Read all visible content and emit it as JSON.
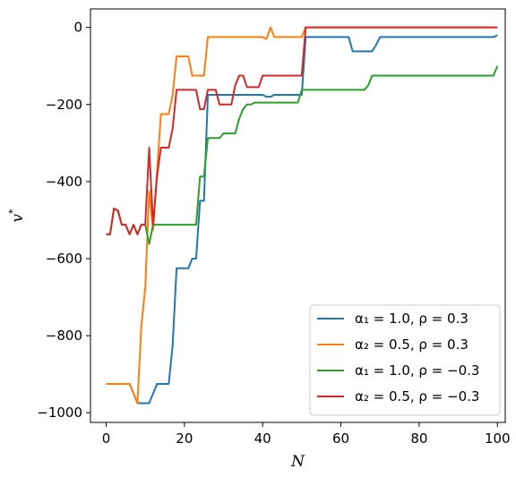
{
  "chart_data": {
    "type": "line",
    "title": "",
    "xlabel": "N",
    "ylabel": "v",
    "ylabel_superscript": "*",
    "xlim": [
      -4,
      102
    ],
    "ylim": [
      -1025,
      48
    ],
    "x_ticks": [
      0,
      20,
      40,
      60,
      80,
      100
    ],
    "y_ticks": [
      0,
      -200,
      -400,
      -600,
      -800,
      -1000
    ],
    "x_tick_labels": [
      "0",
      "20",
      "40",
      "60",
      "80",
      "100"
    ],
    "y_tick_labels": [
      "0",
      "−200",
      "−400",
      "−600",
      "−800",
      "−1000"
    ],
    "grid": false,
    "legend_position": "lower-right",
    "series": [
      {
        "name": "α₁ = 1.0, ρ = 0.3",
        "color": "#1f77b4",
        "x": [
          0,
          2,
          4,
          6,
          8,
          10,
          11,
          12,
          13,
          14,
          15,
          16,
          17,
          18,
          19,
          20,
          21,
          22,
          23,
          24,
          25,
          26,
          27,
          28,
          29,
          30,
          31,
          32,
          33,
          34,
          35,
          36,
          37,
          38,
          39,
          40,
          41,
          42,
          43,
          44,
          45,
          46,
          47,
          48,
          49,
          50,
          51,
          52,
          53,
          54,
          55,
          56,
          57,
          58,
          59,
          60,
          61,
          62,
          63,
          64,
          65,
          66,
          67,
          68,
          69,
          70,
          75,
          80,
          85,
          90,
          95,
          99,
          100
        ],
        "y": [
          -925,
          -925,
          -925,
          -925,
          -975,
          -975,
          -975,
          -950,
          -925,
          -925,
          -925,
          -925,
          -825,
          -625,
          -625,
          -625,
          -625,
          -600,
          -600,
          -450,
          -450,
          -175,
          -175,
          -175,
          -175,
          -175,
          -175,
          -175,
          -175,
          -175,
          -175,
          -175,
          -175,
          -175,
          -175,
          -175,
          -180,
          -180,
          -175,
          -175,
          -175,
          -175,
          -175,
          -175,
          -175,
          -175,
          -25,
          -25,
          -25,
          -25,
          -25,
          -25,
          -25,
          -25,
          -25,
          -25,
          -25,
          -25,
          -62,
          -62,
          -62,
          -62,
          -62,
          -62,
          -45,
          -25,
          -25,
          -25,
          -25,
          -25,
          -25,
          -25,
          -20
        ]
      },
      {
        "name": "α₂ = 0.5, ρ = 0.3",
        "color": "#ff7f0e",
        "x": [
          0,
          2,
          4,
          6,
          8,
          9,
          10,
          11,
          12,
          13,
          14,
          15,
          16,
          17,
          18,
          19,
          20,
          21,
          22,
          23,
          24,
          25,
          26,
          27,
          28,
          29,
          30,
          31,
          32,
          33,
          34,
          35,
          36,
          37,
          38,
          39,
          40,
          41,
          42,
          43,
          44,
          45,
          46,
          47,
          48,
          49,
          50,
          51,
          52,
          55,
          60,
          65,
          70,
          75,
          80,
          85,
          90,
          95,
          100
        ],
        "y": [
          -925,
          -925,
          -925,
          -925,
          -975,
          -775,
          -675,
          -425,
          -525,
          -375,
          -225,
          -225,
          -225,
          -175,
          -75,
          -75,
          -75,
          -75,
          -125,
          -125,
          -125,
          -125,
          -25,
          -25,
          -25,
          -25,
          -25,
          -25,
          -25,
          -25,
          -25,
          -25,
          -25,
          -25,
          -25,
          -25,
          -25,
          -30,
          0,
          -25,
          -25,
          -25,
          -25,
          -25,
          -25,
          -25,
          -25,
          0,
          0,
          0,
          0,
          0,
          0,
          0,
          0,
          0,
          0,
          0,
          0
        ]
      },
      {
        "name": "α₁ = 1.0, ρ = −0.3",
        "color": "#2ca02c",
        "x": [
          0,
          1,
          2,
          3,
          4,
          5,
          6,
          7,
          8,
          9,
          10,
          11,
          12,
          13,
          14,
          15,
          16,
          17,
          18,
          19,
          20,
          21,
          22,
          23,
          24,
          25,
          26,
          27,
          28,
          29,
          30,
          31,
          32,
          33,
          34,
          35,
          36,
          37,
          38,
          39,
          40,
          41,
          42,
          43,
          44,
          45,
          46,
          47,
          48,
          49,
          50,
          51,
          52,
          55,
          60,
          65,
          66,
          67,
          68,
          69,
          70,
          75,
          80,
          85,
          90,
          95,
          99,
          100
        ],
        "y": [
          -537,
          -537,
          -470,
          -475,
          -512,
          -512,
          -537,
          -512,
          -537,
          -512,
          -512,
          -562,
          -512,
          -512,
          -512,
          -512,
          -512,
          -512,
          -512,
          -512,
          -512,
          -512,
          -512,
          -512,
          -387,
          -387,
          -287,
          -287,
          -287,
          -287,
          -275,
          -275,
          -275,
          -275,
          -237,
          -212,
          -200,
          -200,
          -195,
          -195,
          -195,
          -195,
          -195,
          -195,
          -195,
          -195,
          -195,
          -195,
          -195,
          -195,
          -162,
          -162,
          -162,
          -162,
          -162,
          -162,
          -162,
          -150,
          -125,
          -125,
          -125,
          -125,
          -125,
          -125,
          -125,
          -125,
          -125,
          -100
        ]
      },
      {
        "name": "α₂ = 0.5, ρ = −0.3",
        "color": "#d62728",
        "x": [
          0,
          1,
          2,
          3,
          4,
          5,
          6,
          7,
          8,
          9,
          10,
          11,
          12,
          13,
          14,
          15,
          16,
          17,
          18,
          19,
          20,
          21,
          22,
          23,
          24,
          25,
          26,
          27,
          28,
          29,
          30,
          31,
          32,
          33,
          34,
          35,
          36,
          37,
          38,
          39,
          40,
          41,
          42,
          43,
          44,
          45,
          46,
          47,
          48,
          49,
          50,
          51,
          52,
          55,
          60,
          65,
          70,
          75,
          80,
          85,
          90,
          95,
          100
        ],
        "y": [
          -537,
          -537,
          -470,
          -475,
          -512,
          -512,
          -537,
          -512,
          -537,
          -512,
          -512,
          -312,
          -512,
          -387,
          -312,
          -312,
          -312,
          -262,
          -162,
          -162,
          -162,
          -162,
          -162,
          -162,
          -212,
          -212,
          -162,
          -162,
          -162,
          -200,
          -200,
          -200,
          -200,
          -150,
          -125,
          -125,
          -155,
          -155,
          -155,
          -155,
          -125,
          -125,
          -125,
          -125,
          -125,
          -125,
          -125,
          -125,
          -125,
          -125,
          -125,
          0,
          0,
          0,
          0,
          0,
          0,
          0,
          0,
          0,
          0,
          0,
          0
        ]
      }
    ]
  }
}
